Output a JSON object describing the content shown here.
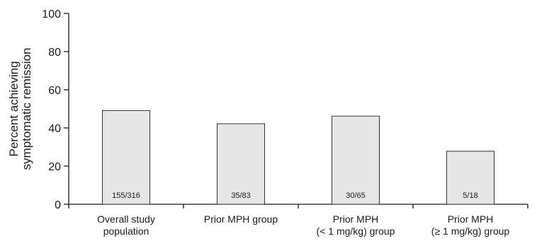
{
  "chart_data": {
    "type": "bar",
    "categories": [
      [
        "Overall study",
        "population"
      ],
      [
        "Prior MPH group"
      ],
      [
        "Prior MPH",
        "(< 1 mg/kg) group"
      ],
      [
        "Prior MPH",
        "(≥ 1 mg/kg) group"
      ]
    ],
    "values": [
      49.1,
      42.2,
      46.2,
      27.8
    ],
    "bar_labels": [
      "155/316",
      "35/83",
      "30/65",
      "5/18"
    ],
    "ylabel": [
      "Percent achieving",
      "symptomatic remission"
    ],
    "xlabel": "",
    "title": "",
    "ylim": [
      0,
      100
    ],
    "yticks": [
      0,
      20,
      40,
      60,
      80,
      100
    ],
    "grid": false,
    "bar_color": "#e6e6e6",
    "bar_edge_color": "#333333"
  }
}
